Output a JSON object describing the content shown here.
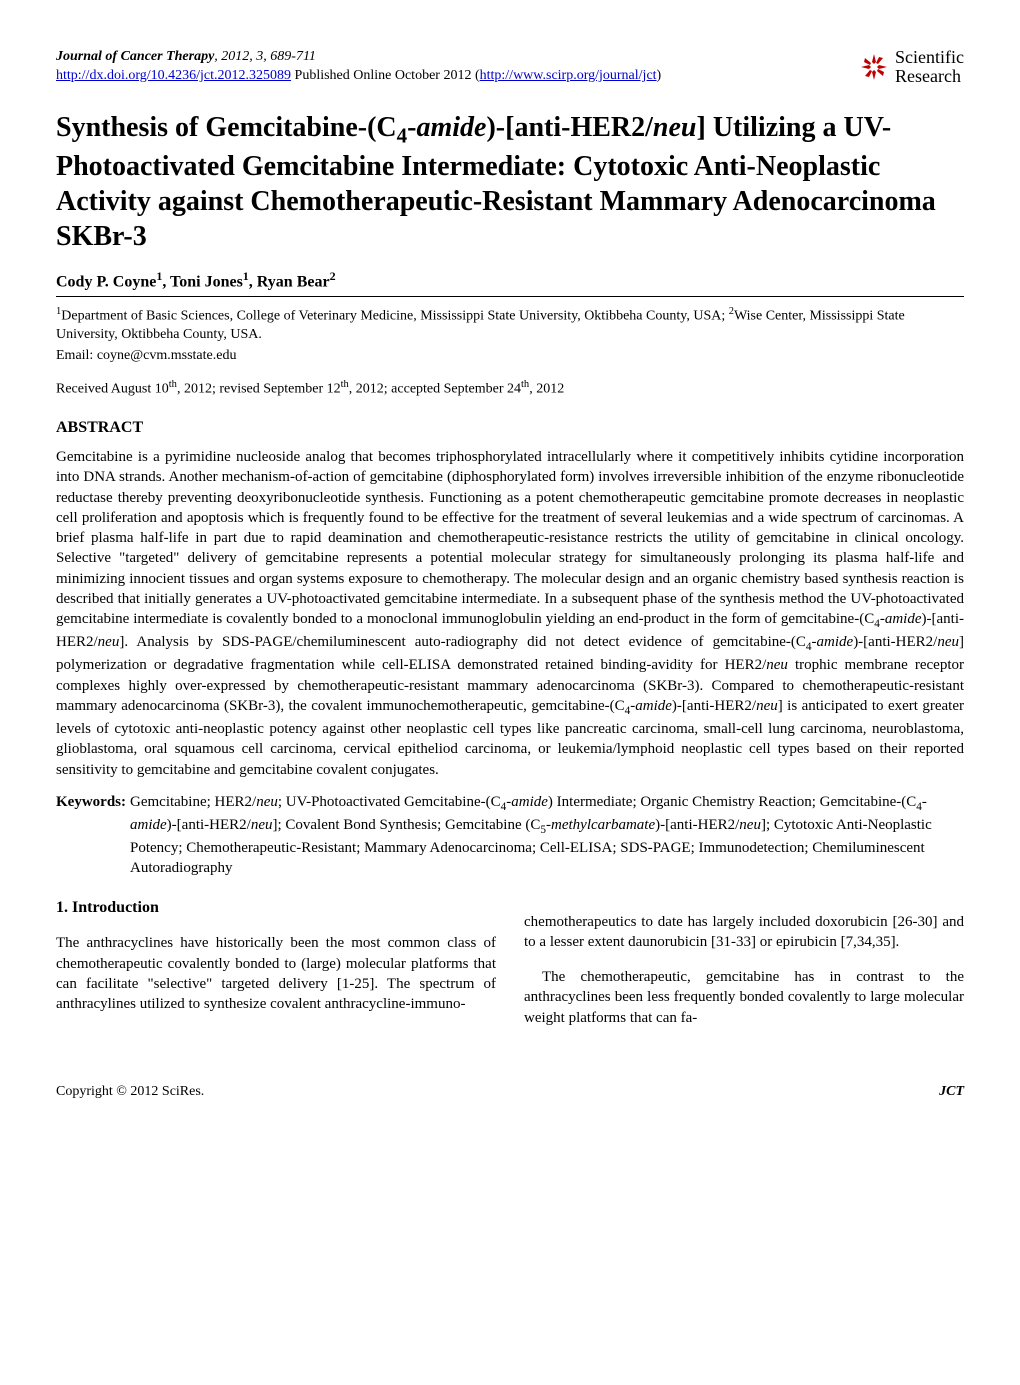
{
  "header": {
    "journal_title": "Journal of Cancer Therapy",
    "year_vol_pages": ", 2012, 3, 689-711",
    "doi_url": "http://dx.doi.org/10.4236/jct.2012.325089",
    "pub_info_plain": " Published Online October 2012 (",
    "pub_url": "http://www.scirp.org/journal/jct",
    "pub_info_close": ")",
    "logo_top": "Scientific",
    "logo_bottom": "Research",
    "logo_color": "#c00000"
  },
  "title": "Synthesis of Gemcitabine-(C₄-amide)-[anti-HER2/neu] Utilizing a UV-Photoactivated Gemcitabine Intermediate: Cytotoxic Anti-Neoplastic Activity against Chemotherapeutic-Resistant Mammary Adenocarcinoma SKBr-3",
  "authors_html": "Cody P. Coyne<sup>1</sup>, Toni Jones<sup>1</sup>, Ryan Bear<sup>2</sup>",
  "affiliations_html": "<sup>1</sup>Department of Basic Sciences, College of Veterinary Medicine, Mississippi State University, Oktibbeha County, USA; <sup>2</sup>Wise Center, Mississippi State University, Oktibbeha County, USA.",
  "email": "Email: coyne@cvm.msstate.edu",
  "dates_html": "Received August 10<sup>th</sup>, 2012; revised September 12<sup>th</sup>, 2012; accepted September 24<sup>th</sup>, 2012",
  "abstract": {
    "heading": "ABSTRACT",
    "body_html": "Gemcitabine is a pyrimidine nucleoside analog that becomes triphosphorylated intracellularly where it competitively inhibits cytidine incorporation into DNA strands. Another mechanism-of-action of gemcitabine (diphosphorylated form) involves irreversible inhibition of the enzyme ribonucleotide reductase thereby preventing deoxyribonucleotide synthesis. Functioning as a potent chemotherapeutic gemcitabine promote decreases in neoplastic cell proliferation and apoptosis which is frequently found to be effective for the treatment of several leukemias and a wide spectrum of carcinomas. A brief plasma half-life in part due to rapid deamination and chemotherapeutic-resistance restricts the utility of gemcitabine in clinical oncology. Selective \"targeted\" delivery of gemcitabine represents a potential molecular strategy for simultaneously prolonging its plasma half-life and minimizing innocient tissues and organ systems exposure to chemotherapy. The molecular design and an organic chemistry based synthesis reaction is described that initially generates a UV-photoactivated gemcitabine intermediate. In a subsequent phase of the synthesis method the UV-photoactivated gemcitabine intermediate is covalently bonded to a monoclonal immunoglobulin yielding an end-product in the form of gemcitabine-(C<sub>4</sub>-<i>amide</i>)-[anti-HER2/<i>neu</i>]. Analysis by SDS-PAGE/chemiluminescent auto-radiography did not detect evidence of gemcitabine-(C<sub>4</sub>-<i>amide</i>)-[anti-HER2/<i>neu</i>] polymerization or degradative fragmentation while cell-ELISA demonstrated retained binding-avidity for HER2/<i>neu</i> trophic membrane receptor complexes highly over-expressed by chemotherapeutic-resistant mammary adenocarcinoma (SKBr-3). Compared to chemotherapeutic-resistant mammary adenocarcinoma (SKBr-3), the covalent immunochemotherapeutic, gemcitabine-(C<sub>4</sub>-<i>amide</i>)-[anti-HER2/<i>neu</i>] is anticipated to exert greater levels of cytotoxic anti-neoplastic potency against other neoplastic cell types like pancreatic carcinoma, small-cell lung carcinoma, neuroblastoma, glioblastoma, oral squamous cell carcinoma, cervical epitheliod carcinoma, or leukemia/lymphoid neoplastic cell types based on their reported sensitivity to gemcitabine and gemcitabine covalent conjugates."
  },
  "keywords": {
    "label": "Keywords:",
    "body_html": "Gemcitabine; HER2/<i>neu</i>; UV-Photoactivated Gemcitabine-(C<sub>4</sub>-<i>amide</i>) Intermediate; Organic Chemistry Reaction; Gemcitabine-(C<sub>4</sub>-<i>amide</i>)-[anti-HER2/<i>neu</i>]; Covalent Bond Synthesis; Gemcitabine (C<sub>5</sub>-<i>methylcarbamate</i>)-[anti-HER2/<i>neu</i>]; Cytotoxic Anti-Neoplastic Potency; Chemotherapeutic-Resistant; Mammary Adenocarcinoma; Cell-ELISA; SDS-PAGE; Immunodetection; Chemiluminescent Autoradiography"
  },
  "intro": {
    "heading": "1. Introduction",
    "col1": "The anthracyclines have historically been the most common class of chemotherapeutic covalently bonded to (large) molecular platforms that can facilitate \"selective\" targeted delivery [1-25]. The spectrum of anthracylines utilized to synthesize covalent anthracycline-immuno-",
    "col2_p1": "chemotherapeutics to date has largely included doxorubicin [26-30] and to a lesser extent daunorubicin [31-33] or epirubicin [7,34,35].",
    "col2_p2": "The chemotherapeutic, gemcitabine has in contrast to the anthracyclines been less frequently bonded covalently to large molecular weight platforms that can fa-"
  },
  "footer": {
    "left": "Copyright © 2012 SciRes.",
    "right": "JCT"
  }
}
